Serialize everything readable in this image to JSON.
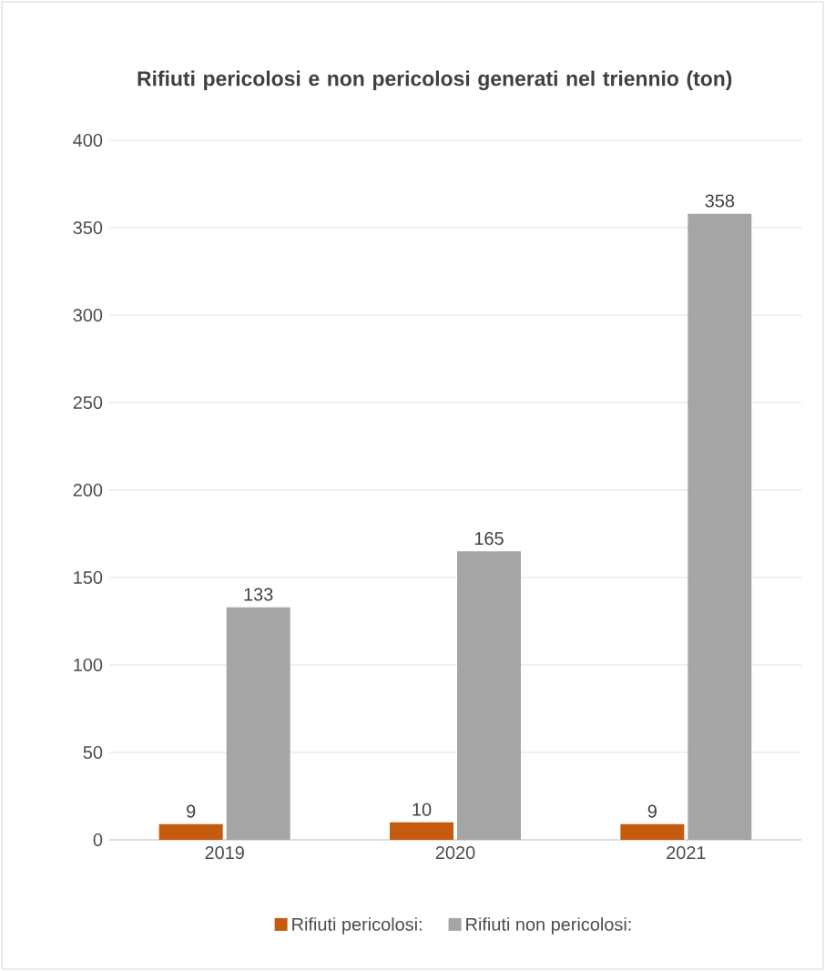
{
  "chart_data": {
    "type": "bar",
    "title": "Rifiuti pericolosi e non pericolosi generati nel triennio (ton)",
    "categories": [
      "2019",
      "2020",
      "2021"
    ],
    "series": [
      {
        "name": "Rifiuti pericolosi:",
        "color": "#c55a11",
        "values": [
          9,
          10,
          9
        ]
      },
      {
        "name": "Rifiuti non pericolosi:",
        "color": "#a5a5a5",
        "values": [
          133,
          165,
          358
        ]
      }
    ],
    "ylim": [
      0,
      400
    ],
    "yticks": [
      0,
      50,
      100,
      150,
      200,
      250,
      300,
      350,
      400
    ],
    "grid": "y",
    "legend": "bottom",
    "data_labels": true
  }
}
